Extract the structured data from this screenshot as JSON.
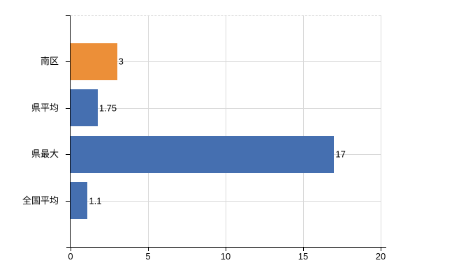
{
  "chart_data": {
    "type": "bar",
    "orientation": "horizontal",
    "title": "",
    "categories": [
      "南区",
      "県平均",
      "県最大",
      "全国平均"
    ],
    "values": [
      3,
      1.75,
      17,
      1.1
    ],
    "value_labels": [
      "3",
      "1.75",
      "17",
      "1.1"
    ],
    "bar_colors": [
      "#ec8f38",
      "#456fb0",
      "#456fb0",
      "#456fb0"
    ],
    "xlim": [
      0,
      20
    ],
    "x_ticks": [
      0,
      5,
      10,
      15,
      20
    ],
    "x_tick_labels": [
      "0",
      "5",
      "10",
      "15",
      "20"
    ],
    "grid": true,
    "legend": false,
    "colors": {
      "orange_bar": "#ec8f38",
      "blue_bar": "#456fb0",
      "gridline": "#d9d9d9",
      "axis": "#000000",
      "text": "#000000",
      "background": "#ffffff"
    }
  }
}
